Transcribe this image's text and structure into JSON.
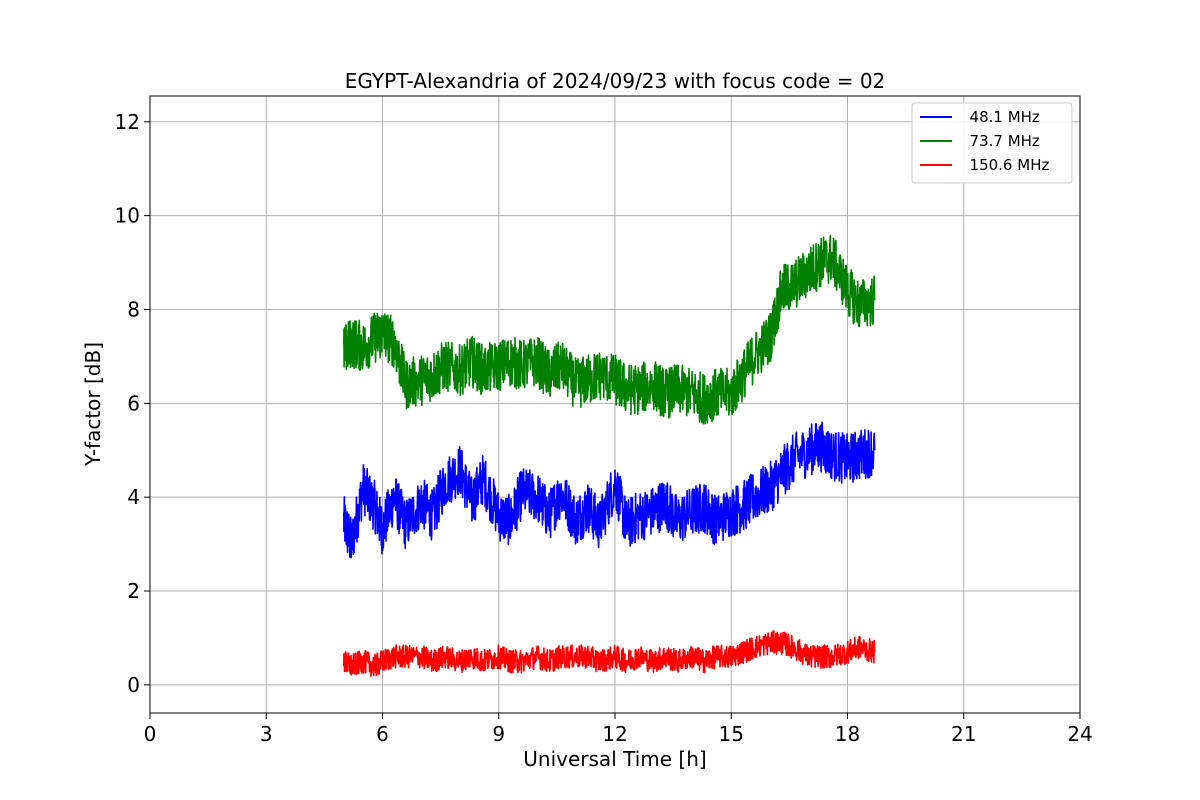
{
  "chart_data": {
    "type": "line",
    "title": "EGYPT-Alexandria of 2024/09/23 with focus code = 02",
    "xlabel": "Universal Time [h]",
    "ylabel": "Y-factor [dB]",
    "xlim": [
      0,
      24
    ],
    "ylim": [
      -0.6,
      12.55
    ],
    "xticks": [
      0,
      3,
      6,
      9,
      12,
      15,
      18,
      21,
      24
    ],
    "xtick_labels": [
      "0",
      "3",
      "6",
      "9",
      "12",
      "15",
      "18",
      "21",
      "24"
    ],
    "yticks": [
      0,
      2,
      4,
      6,
      8,
      10,
      12
    ],
    "ytick_labels": [
      "0",
      "2",
      "4",
      "6",
      "8",
      "10",
      "12"
    ],
    "grid": true,
    "legend_position": "top-right",
    "series": [
      {
        "name": "  48.1 MHz",
        "color": "#0000ff",
        "x": [
          5.0,
          5.2,
          5.5,
          5.8,
          6.0,
          6.3,
          6.6,
          7.0,
          7.3,
          7.6,
          8.0,
          8.3,
          8.6,
          9.0,
          9.3,
          9.6,
          10.0,
          10.3,
          10.6,
          11.0,
          11.3,
          11.6,
          12.0,
          12.3,
          12.6,
          13.0,
          13.3,
          13.6,
          14.0,
          14.3,
          14.6,
          15.0,
          15.3,
          15.6,
          16.0,
          16.3,
          16.6,
          17.0,
          17.3,
          17.6,
          18.0,
          18.3,
          18.7
        ],
        "y": [
          3.5,
          3.0,
          4.2,
          3.8,
          3.3,
          4.0,
          3.4,
          3.9,
          3.6,
          4.3,
          4.6,
          3.9,
          4.4,
          3.6,
          3.5,
          4.1,
          4.0,
          3.6,
          4.1,
          3.5,
          3.8,
          3.4,
          4.3,
          3.4,
          3.6,
          3.7,
          3.9,
          3.5,
          3.7,
          3.8,
          3.5,
          3.7,
          3.8,
          4.0,
          4.2,
          4.5,
          4.8,
          5.0,
          5.1,
          4.9,
          4.8,
          4.9,
          5.0
        ]
      },
      {
        "name": "  73.7 MHz",
        "color": "#008000",
        "x": [
          5.0,
          5.2,
          5.5,
          5.8,
          6.0,
          6.3,
          6.6,
          7.0,
          7.3,
          7.6,
          8.0,
          8.3,
          8.6,
          9.0,
          9.3,
          9.6,
          10.0,
          10.3,
          10.6,
          11.0,
          11.3,
          11.6,
          12.0,
          12.3,
          12.6,
          13.0,
          13.3,
          13.6,
          14.0,
          14.3,
          14.6,
          15.0,
          15.3,
          15.6,
          16.0,
          16.3,
          16.6,
          17.0,
          17.3,
          17.6,
          18.0,
          18.3,
          18.7
        ],
        "y": [
          7.1,
          7.3,
          7.2,
          7.4,
          7.5,
          7.3,
          6.4,
          6.5,
          6.6,
          6.8,
          6.7,
          6.9,
          6.7,
          6.8,
          6.9,
          6.8,
          6.9,
          6.6,
          6.8,
          6.4,
          6.5,
          6.6,
          6.5,
          6.3,
          6.3,
          6.4,
          6.2,
          6.3,
          6.2,
          6.1,
          6.2,
          6.2,
          6.6,
          7.0,
          7.4,
          8.4,
          8.5,
          8.8,
          9.0,
          9.1,
          8.4,
          8.1,
          8.2
        ]
      },
      {
        "name": "  150.6 MHz",
        "color": "#ff0000",
        "x": [
          5.0,
          5.2,
          5.5,
          5.8,
          6.0,
          6.3,
          6.6,
          7.0,
          7.3,
          7.6,
          8.0,
          8.3,
          8.6,
          9.0,
          9.3,
          9.6,
          10.0,
          10.3,
          10.6,
          11.0,
          11.3,
          11.6,
          12.0,
          12.3,
          12.6,
          13.0,
          13.3,
          13.6,
          14.0,
          14.3,
          14.6,
          15.0,
          15.3,
          15.6,
          16.0,
          16.3,
          16.6,
          17.0,
          17.3,
          17.6,
          18.0,
          18.3,
          18.7
        ],
        "y": [
          0.5,
          0.4,
          0.5,
          0.4,
          0.5,
          0.6,
          0.6,
          0.6,
          0.5,
          0.6,
          0.5,
          0.6,
          0.5,
          0.6,
          0.5,
          0.5,
          0.6,
          0.5,
          0.6,
          0.6,
          0.6,
          0.5,
          0.6,
          0.5,
          0.6,
          0.5,
          0.6,
          0.5,
          0.6,
          0.5,
          0.6,
          0.6,
          0.7,
          0.8,
          0.9,
          0.9,
          0.8,
          0.6,
          0.6,
          0.6,
          0.7,
          0.8,
          0.7
        ]
      }
    ]
  }
}
